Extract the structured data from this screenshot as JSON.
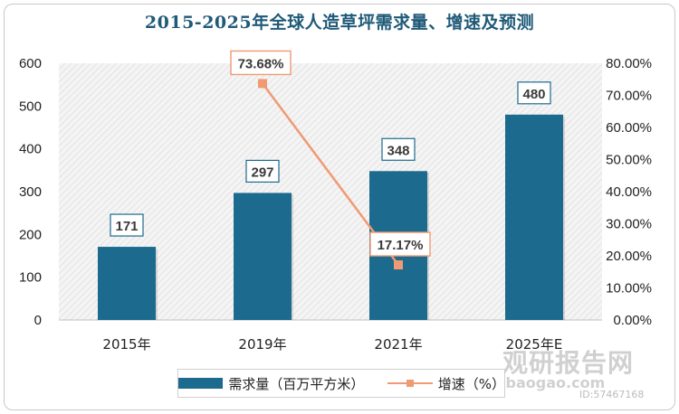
{
  "chart_data": {
    "type": "bar",
    "title": "2015-2025年全球人造草坪需求量、增速及预测",
    "categories": [
      "2015年",
      "2019年",
      "2021年",
      "2025年E"
    ],
    "series": [
      {
        "name": "需求量（百万平方米）",
        "type": "bar",
        "axis": "left",
        "color": "#1c6a8e",
        "values": [
          171,
          297,
          348,
          480
        ],
        "labels": [
          "171",
          "297",
          "348",
          "480"
        ]
      },
      {
        "name": "增速（%）",
        "type": "line",
        "axis": "right",
        "color": "#f09a74",
        "points": [
          {
            "category": "2019年",
            "value": 73.68,
            "label": "73.68%"
          },
          {
            "category": "2021年",
            "value": 17.17,
            "label": "17.17%"
          }
        ]
      }
    ],
    "y_left": {
      "min": 0,
      "max": 600,
      "ticks": [
        "0",
        "100",
        "200",
        "300",
        "400",
        "500",
        "600"
      ]
    },
    "y_right": {
      "min": 0,
      "max": 80,
      "ticks": [
        "0.00%",
        "10.00%",
        "20.00%",
        "30.00%",
        "40.00%",
        "50.00%",
        "60.00%",
        "70.00%",
        "80.00%"
      ]
    },
    "legend_position": "bottom",
    "plot_background": "diagonal-hatch"
  },
  "legend": {
    "bar_label": "需求量（百万平方米）",
    "line_label": "增速（%）"
  },
  "watermark": {
    "brand": "观研报告网",
    "site": "chinabaogao.com",
    "id": "ID:57467168"
  }
}
